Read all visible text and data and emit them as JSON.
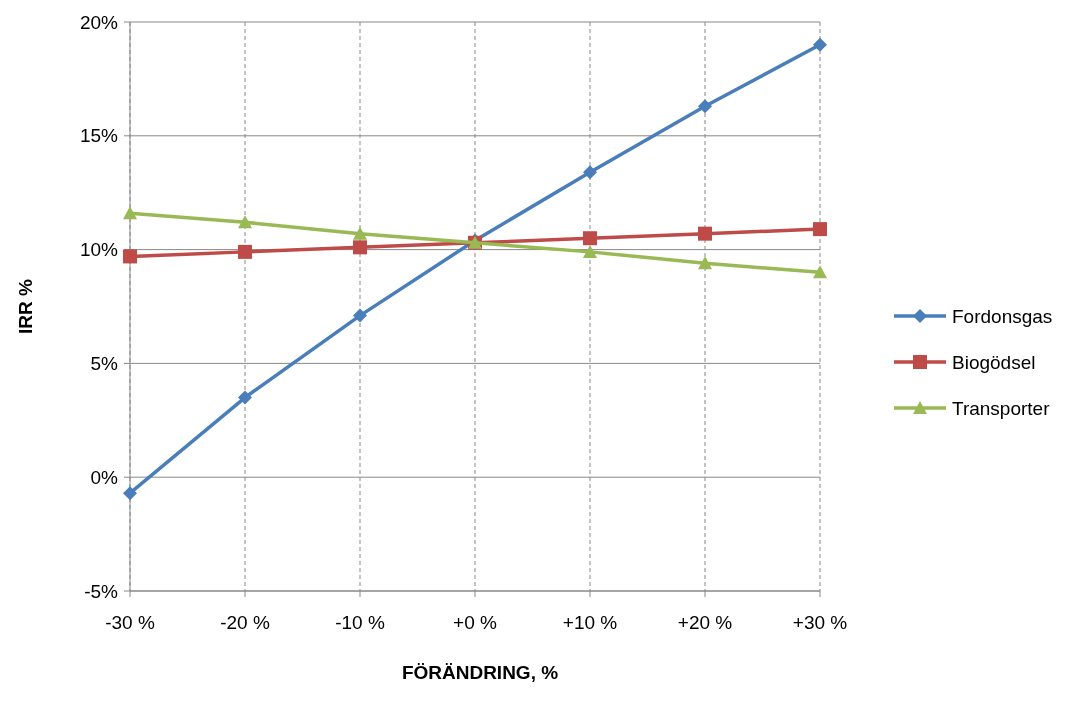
{
  "chart_data": {
    "type": "line",
    "xlabel": "FÖRÄNDRING, %",
    "ylabel": "IRR %",
    "categories": [
      "-30 %",
      "-20 %",
      "-10 %",
      "+0 %",
      "+10 %",
      "+20 %",
      "+30 %"
    ],
    "series": [
      {
        "name": "Fordonsgas",
        "color": "#4a7ebb",
        "marker": "diamond",
        "values": [
          -0.7,
          3.5,
          7.1,
          10.4,
          13.4,
          16.3,
          19.0
        ]
      },
      {
        "name": "Biogödsel",
        "color": "#be4b48",
        "marker": "square",
        "values": [
          9.7,
          9.9,
          10.1,
          10.3,
          10.5,
          10.7,
          10.9
        ]
      },
      {
        "name": "Transporter",
        "color": "#98b954",
        "marker": "triangle",
        "values": [
          11.6,
          11.2,
          10.7,
          10.3,
          9.9,
          9.4,
          9.0
        ]
      }
    ],
    "ylim": [
      -5,
      20
    ],
    "yticks": [
      {
        "value": -5,
        "label": "-5%"
      },
      {
        "value": 0,
        "label": "0%"
      },
      {
        "value": 5,
        "label": "5%"
      },
      {
        "value": 10,
        "label": "10%"
      },
      {
        "value": 15,
        "label": "15%"
      },
      {
        "value": 20,
        "label": "20%"
      }
    ],
    "grid": true,
    "legend": "right",
    "line_style": "solid"
  }
}
